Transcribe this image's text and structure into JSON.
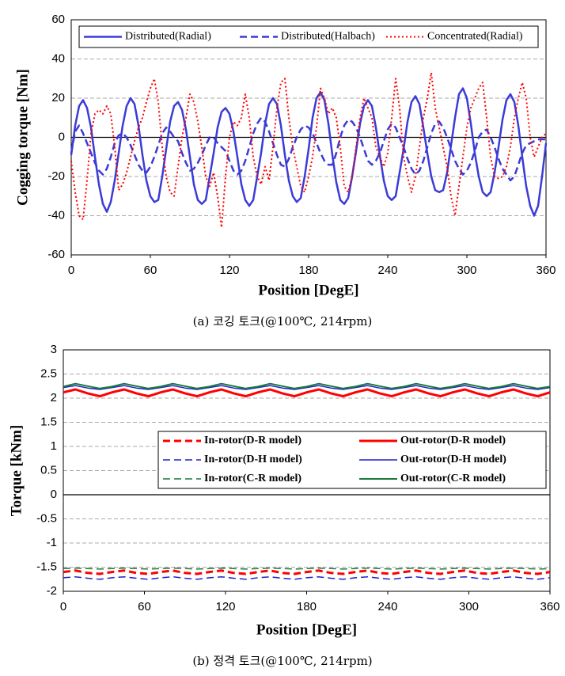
{
  "chart_data": [
    {
      "type": "line",
      "caption": "(a) 코깅 토크(@100℃, 214rpm)",
      "x_label": "Position [DegE]",
      "y_label": "Cogging torque [Nm]",
      "xlim": [
        0,
        360
      ],
      "xticks": [
        0,
        60,
        120,
        180,
        240,
        300,
        360
      ],
      "ylim": [
        -60,
        60
      ],
      "yticks": [
        -60,
        -40,
        -20,
        0,
        20,
        40,
        60
      ],
      "grid": true,
      "x": [
        0,
        3,
        6,
        9,
        12,
        15,
        18,
        21,
        24,
        27,
        30,
        33,
        36,
        39,
        42,
        45,
        48,
        51,
        54,
        57,
        60,
        63,
        66,
        69,
        72,
        75,
        78,
        81,
        84,
        87,
        90,
        93,
        96,
        99,
        102,
        105,
        108,
        111,
        114,
        117,
        120,
        123,
        126,
        129,
        132,
        135,
        138,
        141,
        144,
        147,
        150,
        153,
        156,
        159,
        162,
        165,
        168,
        171,
        174,
        177,
        180,
        183,
        186,
        189,
        192,
        195,
        198,
        201,
        204,
        207,
        210,
        213,
        216,
        219,
        222,
        225,
        228,
        231,
        234,
        237,
        240,
        243,
        246,
        249,
        252,
        255,
        258,
        261,
        264,
        267,
        270,
        273,
        276,
        279,
        282,
        285,
        288,
        291,
        294,
        297,
        300,
        303,
        306,
        309,
        312,
        315,
        318,
        321,
        324,
        327,
        330,
        333,
        336,
        339,
        342,
        345,
        348,
        351,
        354,
        357,
        360
      ],
      "series": [
        {
          "name": "Distributed(Radial)",
          "color": "#3b3bd8",
          "line_style": "solid",
          "line_width": 2.5,
          "values": [
            -9,
            6,
            16,
            19,
            15,
            5,
            -10,
            -24,
            -34,
            -38,
            -33,
            -22,
            -8,
            6,
            16,
            20,
            17,
            6,
            -9,
            -22,
            -30,
            -33,
            -32,
            -20,
            -6,
            8,
            16,
            18,
            14,
            4,
            -10,
            -24,
            -32,
            -34,
            -32,
            -20,
            -8,
            5,
            13,
            15,
            12,
            3,
            -10,
            -24,
            -32,
            -35,
            -32,
            -20,
            -8,
            7,
            17,
            20,
            17,
            6,
            -9,
            -22,
            -30,
            -33,
            -31,
            -20,
            -6,
            10,
            20,
            23,
            19,
            7,
            -9,
            -23,
            -32,
            -34,
            -31,
            -20,
            -7,
            7,
            16,
            19,
            16,
            5,
            -9,
            -22,
            -30,
            -32,
            -30,
            -18,
            -6,
            8,
            18,
            21,
            17,
            5,
            -8,
            -20,
            -27,
            -28,
            -27,
            -18,
            -4,
            10,
            22,
            25,
            20,
            7,
            -8,
            -20,
            -28,
            -30,
            -28,
            -18,
            -5,
            9,
            19,
            22,
            18,
            6,
            -10,
            -25,
            -35,
            -40,
            -35,
            -20,
            -3
          ]
        },
        {
          "name": "Distributed(Halbach)",
          "color": "#3b3bd8",
          "line_style": "dashed",
          "line_width": 2.5,
          "values": [
            -8,
            3,
            6,
            2,
            -3,
            -8,
            -13,
            -17,
            -19,
            -16,
            -10,
            -3,
            1,
            2,
            0,
            -4,
            -9,
            -14,
            -17,
            -18,
            -15,
            -10,
            -4,
            2,
            5,
            3,
            0,
            -2,
            -8,
            -13,
            -17,
            -16,
            -13,
            -9,
            -4,
            0,
            0,
            -3,
            -5,
            -7,
            -12,
            -17,
            -19,
            -17,
            -12,
            -5,
            2,
            7,
            10,
            8,
            3,
            -3,
            -9,
            -14,
            -15,
            -11,
            -5,
            0,
            4,
            6,
            5,
            2,
            -3,
            -8,
            -12,
            -14,
            -14,
            -8,
            0,
            6,
            9,
            8,
            5,
            0,
            -6,
            -12,
            -14,
            -12,
            -8,
            -2,
            4,
            7,
            5,
            0,
            -5,
            -11,
            -16,
            -19,
            -17,
            -12,
            -5,
            2,
            7,
            8,
            5,
            0,
            -6,
            -12,
            -16,
            -19,
            -17,
            -13,
            -7,
            0,
            3,
            4,
            0,
            -5,
            -11,
            -16,
            -19,
            -22,
            -20,
            -14,
            -8,
            -4,
            -3,
            -2,
            -1,
            -1,
            -1
          ]
        },
        {
          "name": "Concentrated(Radial)",
          "color": "#ff0000",
          "line_style": "dotted",
          "line_width": 2,
          "values": [
            -12,
            -28,
            -40,
            -42,
            -22,
            2,
            12,
            14,
            12,
            16,
            12,
            -5,
            -27,
            -24,
            -18,
            -10,
            -2,
            5,
            10,
            18,
            25,
            30,
            18,
            -5,
            -20,
            -28,
            -30,
            -15,
            0,
            10,
            22,
            18,
            8,
            -5,
            -20,
            -25,
            -18,
            -30,
            -46,
            -20,
            0,
            8,
            6,
            10,
            22,
            10,
            -10,
            -20,
            -24,
            -15,
            -22,
            -5,
            15,
            28,
            30,
            10,
            -5,
            -15,
            -25,
            -28,
            -20,
            -10,
            5,
            25,
            20,
            12,
            15,
            10,
            -5,
            -25,
            -28,
            -20,
            -5,
            10,
            20,
            15,
            10,
            -5,
            -10,
            -15,
            -8,
            10,
            30,
            15,
            -10,
            -20,
            -28,
            -20,
            -5,
            10,
            20,
            33,
            15,
            5,
            -5,
            -15,
            -30,
            -40,
            -25,
            -10,
            5,
            15,
            20,
            25,
            28,
            10,
            -10,
            -20,
            -21,
            -20,
            -15,
            -5,
            10,
            20,
            28,
            20,
            0,
            -10,
            -5,
            0,
            2
          ]
        }
      ]
    },
    {
      "type": "line",
      "caption": "(b) 정격 토크(@100℃, 214rpm)",
      "x_label": "Position [DegE]",
      "y_label": "Torque [kNm]",
      "xlim": [
        0,
        360
      ],
      "xticks": [
        0,
        60,
        120,
        180,
        240,
        300,
        360
      ],
      "ylim": [
        -2,
        3
      ],
      "yticks": [
        -2,
        -1.5,
        -1,
        -0.5,
        0,
        0.5,
        1,
        1.5,
        2,
        2.5,
        3
      ],
      "grid": true,
      "x": [
        0,
        9,
        18,
        27,
        36,
        45,
        54,
        63,
        72,
        81,
        90,
        99,
        108,
        117,
        126,
        135,
        144,
        153,
        162,
        171,
        180,
        189,
        198,
        207,
        216,
        225,
        234,
        243,
        252,
        261,
        270,
        279,
        288,
        297,
        306,
        315,
        324,
        333,
        342,
        351,
        360
      ],
      "series": [
        {
          "name": "In-rotor(D-R model)",
          "color": "#ff0000",
          "line_style": "dashed",
          "line_width": 3,
          "values": [
            -1.6,
            -1.57,
            -1.62,
            -1.64,
            -1.6,
            -1.57,
            -1.62,
            -1.64,
            -1.6,
            -1.57,
            -1.62,
            -1.64,
            -1.6,
            -1.57,
            -1.62,
            -1.64,
            -1.6,
            -1.57,
            -1.62,
            -1.64,
            -1.6,
            -1.57,
            -1.62,
            -1.64,
            -1.6,
            -1.57,
            -1.62,
            -1.64,
            -1.6,
            -1.57,
            -1.62,
            -1.64,
            -1.6,
            -1.57,
            -1.62,
            -1.64,
            -1.6,
            -1.57,
            -1.62,
            -1.64,
            -1.6
          ]
        },
        {
          "name": "Out-rotor(D-R model)",
          "color": "#ff0000",
          "line_style": "solid",
          "line_width": 3,
          "values": [
            2.12,
            2.18,
            2.1,
            2.04,
            2.12,
            2.18,
            2.1,
            2.04,
            2.12,
            2.18,
            2.1,
            2.04,
            2.12,
            2.18,
            2.1,
            2.04,
            2.12,
            2.18,
            2.1,
            2.04,
            2.12,
            2.18,
            2.1,
            2.04,
            2.12,
            2.18,
            2.1,
            2.04,
            2.12,
            2.18,
            2.1,
            2.04,
            2.12,
            2.18,
            2.1,
            2.04,
            2.12,
            2.18,
            2.1,
            2.04,
            2.12
          ]
        },
        {
          "name": "In-rotor(D-H model)",
          "color": "#2222cc",
          "line_style": "dashed",
          "line_width": 1.5,
          "values": [
            -1.72,
            -1.7,
            -1.73,
            -1.75,
            -1.72,
            -1.7,
            -1.73,
            -1.75,
            -1.72,
            -1.7,
            -1.73,
            -1.75,
            -1.72,
            -1.7,
            -1.73,
            -1.75,
            -1.72,
            -1.7,
            -1.73,
            -1.75,
            -1.72,
            -1.7,
            -1.73,
            -1.75,
            -1.72,
            -1.7,
            -1.73,
            -1.75,
            -1.72,
            -1.7,
            -1.73,
            -1.75,
            -1.72,
            -1.7,
            -1.73,
            -1.75,
            -1.72,
            -1.7,
            -1.73,
            -1.75,
            -1.72
          ]
        },
        {
          "name": "Out-rotor(D-H model)",
          "color": "#2222cc",
          "line_style": "solid",
          "line_width": 1.5,
          "values": [
            2.22,
            2.26,
            2.21,
            2.18,
            2.22,
            2.26,
            2.21,
            2.18,
            2.22,
            2.26,
            2.21,
            2.18,
            2.22,
            2.26,
            2.21,
            2.18,
            2.22,
            2.26,
            2.21,
            2.18,
            2.22,
            2.26,
            2.21,
            2.18,
            2.22,
            2.26,
            2.21,
            2.18,
            2.22,
            2.26,
            2.21,
            2.18,
            2.22,
            2.26,
            2.21,
            2.18,
            2.22,
            2.26,
            2.21,
            2.18,
            2.22
          ]
        },
        {
          "name": "In-rotor(C-R model)",
          "color": "#1a7a3a",
          "line_style": "dashed",
          "line_width": 1.5,
          "values": [
            -1.53,
            -1.52,
            -1.53,
            -1.54,
            -1.53,
            -1.52,
            -1.53,
            -1.54,
            -1.53,
            -1.52,
            -1.53,
            -1.54,
            -1.53,
            -1.52,
            -1.53,
            -1.54,
            -1.53,
            -1.52,
            -1.53,
            -1.54,
            -1.53,
            -1.52,
            -1.53,
            -1.54,
            -1.53,
            -1.52,
            -1.53,
            -1.54,
            -1.53,
            -1.52,
            -1.53,
            -1.54,
            -1.53,
            -1.52,
            -1.53,
            -1.54,
            -1.53,
            -1.52,
            -1.53,
            -1.54,
            -1.53
          ]
        },
        {
          "name": "Out-rotor(C-R model)",
          "color": "#1a7a3a",
          "line_style": "solid",
          "line_width": 2,
          "values": [
            2.24,
            2.3,
            2.25,
            2.2,
            2.24,
            2.3,
            2.25,
            2.2,
            2.24,
            2.3,
            2.25,
            2.2,
            2.24,
            2.3,
            2.25,
            2.2,
            2.24,
            2.3,
            2.25,
            2.2,
            2.24,
            2.3,
            2.25,
            2.2,
            2.24,
            2.3,
            2.25,
            2.2,
            2.24,
            2.3,
            2.25,
            2.2,
            2.24,
            2.3,
            2.25,
            2.2,
            2.24,
            2.3,
            2.25,
            2.2,
            2.24
          ]
        }
      ]
    }
  ]
}
